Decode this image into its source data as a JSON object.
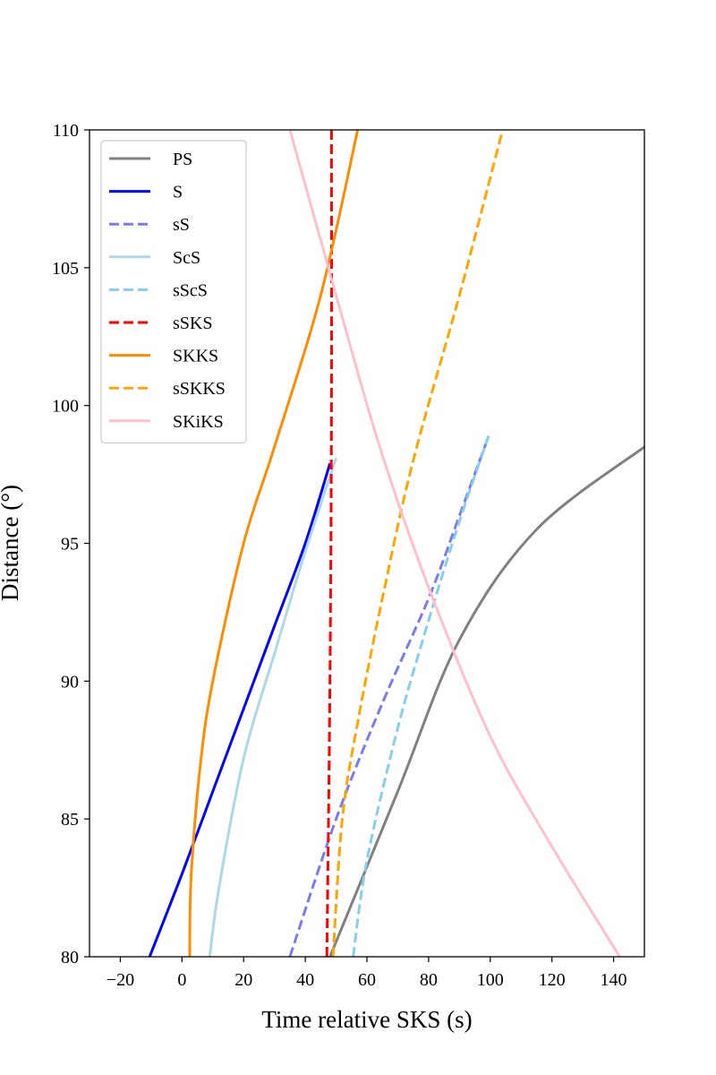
{
  "chart_data": {
    "type": "line",
    "title": "",
    "xlabel": "Time relative SKS (s)",
    "ylabel": "Distance (°)",
    "xlim": [
      -30,
      150
    ],
    "ylim": [
      80,
      110
    ],
    "xticks": [
      -20,
      0,
      20,
      40,
      60,
      80,
      100,
      120,
      140
    ],
    "yticks": [
      80,
      85,
      90,
      95,
      100,
      105,
      110
    ],
    "xtick_labels": [
      "−20",
      "0",
      "20",
      "40",
      "60",
      "80",
      "100",
      "120",
      "140"
    ],
    "ytick_labels": [
      "80",
      "85",
      "90",
      "95",
      "100",
      "105",
      "110"
    ],
    "grid": false,
    "legend_position": "upper-left",
    "series": [
      {
        "name": "PS",
        "color": "#808080",
        "dash": "solid",
        "points": [
          [
            48,
            80
          ],
          [
            70,
            86
          ],
          [
            90,
            91.5
          ],
          [
            115,
            95.5
          ],
          [
            150,
            98.5
          ]
        ]
      },
      {
        "name": "S",
        "color": "#0000ff",
        "dash": "solid",
        "points": [
          [
            -10.5,
            80
          ],
          [
            0,
            83
          ],
          [
            10,
            86
          ],
          [
            20,
            89
          ],
          [
            30,
            92
          ],
          [
            40,
            95
          ],
          [
            48,
            97.9
          ]
        ]
      },
      {
        "name": "sS",
        "color": "#7b7bf0",
        "dash": "dashed",
        "points": [
          [
            35,
            80
          ],
          [
            50,
            85
          ],
          [
            65,
            89.2
          ],
          [
            80,
            93
          ],
          [
            90,
            96
          ],
          [
            99.5,
            98.9
          ]
        ]
      },
      {
        "name": "ScS",
        "color": "#add8e6",
        "dash": "solid",
        "points": [
          [
            9,
            80
          ],
          [
            12,
            82.5
          ],
          [
            20,
            87.2
          ],
          [
            30,
            91
          ],
          [
            40,
            94.7
          ],
          [
            50,
            98.1
          ]
        ]
      },
      {
        "name": "sScS",
        "color": "#87ceeb",
        "dash": "dashed",
        "points": [
          [
            55.5,
            80
          ],
          [
            60,
            83.5
          ],
          [
            70,
            88.3
          ],
          [
            80,
            92.2
          ],
          [
            90,
            95.8
          ],
          [
            99.5,
            98.9
          ]
        ]
      },
      {
        "name": "sSKS",
        "color": "#ff0000",
        "dash": "dashed",
        "points": [
          [
            47,
            80
          ],
          [
            48,
            90
          ],
          [
            48.5,
            100
          ],
          [
            48.5,
            110
          ]
        ]
      },
      {
        "name": "SKKS",
        "color": "#ff8c00",
        "dash": "solid",
        "points": [
          [
            2.5,
            80
          ],
          [
            3,
            83
          ],
          [
            6,
            87
          ],
          [
            10,
            90
          ],
          [
            20,
            95
          ],
          [
            30,
            98.5
          ],
          [
            45,
            104
          ],
          [
            57,
            110
          ]
        ]
      },
      {
        "name": "sSKKS",
        "color": "#ffa500",
        "dash": "dashed",
        "points": [
          [
            49,
            80
          ],
          [
            52,
            85
          ],
          [
            57,
            88.5
          ],
          [
            65,
            93
          ],
          [
            75,
            98
          ],
          [
            90,
            104
          ],
          [
            104,
            110
          ]
        ]
      },
      {
        "name": "SKiKS",
        "color": "#ffc0cb",
        "dash": "solid",
        "points": [
          [
            35,
            110
          ],
          [
            45,
            106
          ],
          [
            55,
            102
          ],
          [
            65,
            98.2
          ],
          [
            80,
            93.4
          ],
          [
            100,
            88
          ],
          [
            120,
            84
          ],
          [
            142,
            80
          ]
        ]
      }
    ]
  }
}
